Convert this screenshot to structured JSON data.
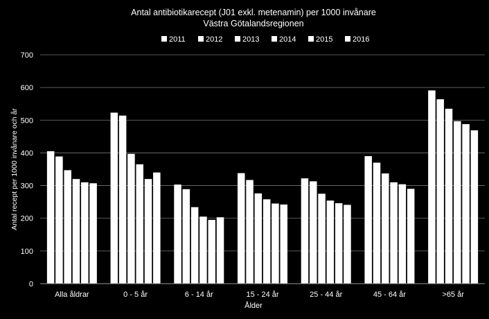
{
  "chart_data": {
    "type": "bar",
    "title": "Antal antibiotikarecept (J01 exkl. metenamin) per 1000 invånare",
    "subtitle": "Västra Götalandsregionen",
    "xlabel": "Ålder",
    "ylabel": "Antal recept per 1000 invånare och år",
    "ylim": [
      0,
      700
    ],
    "yticks": [
      0,
      100,
      200,
      300,
      400,
      500,
      600,
      700
    ],
    "grid": true,
    "legend_position": "top",
    "bar_color": "#ffffff",
    "background": "#000000",
    "categories": [
      "Alla åldrar",
      "0 - 5 år",
      "6 - 14 år",
      "15 - 24 år",
      "25 - 44 år",
      "45 - 64 år",
      ">65 år"
    ],
    "series": [
      {
        "name": "2011",
        "values": [
          405,
          523,
          303,
          338,
          322,
          390,
          591
        ]
      },
      {
        "name": "2012",
        "values": [
          389,
          514,
          289,
          317,
          313,
          370,
          564
        ]
      },
      {
        "name": "2013",
        "values": [
          347,
          397,
          234,
          276,
          275,
          337,
          535
        ]
      },
      {
        "name": "2014",
        "values": [
          320,
          365,
          205,
          258,
          254,
          310,
          497
        ]
      },
      {
        "name": "2015",
        "values": [
          310,
          320,
          195,
          245,
          246,
          304,
          488
        ]
      },
      {
        "name": "2016",
        "values": [
          307,
          340,
          203,
          242,
          241,
          290,
          469
        ]
      }
    ]
  }
}
